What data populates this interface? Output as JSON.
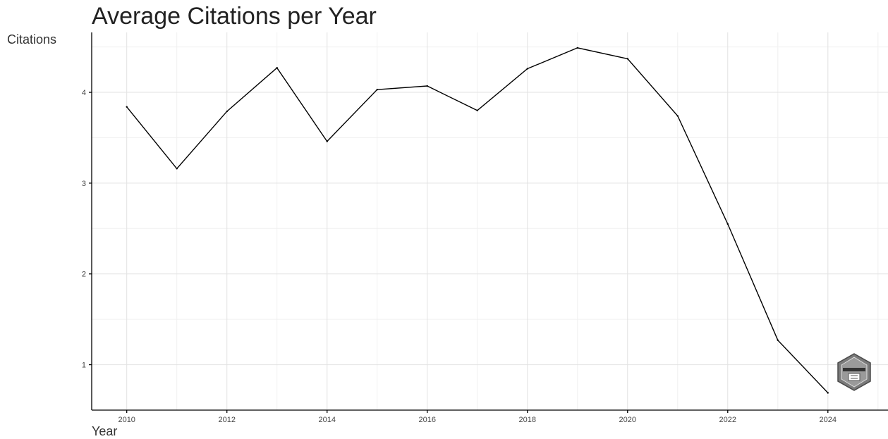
{
  "chart_data": {
    "type": "line",
    "title": "Average Citations per Year",
    "xlabel": "Year",
    "ylabel": "Citations",
    "x": [
      2010,
      2011,
      2012,
      2013,
      2014,
      2015,
      2016,
      2017,
      2018,
      2019,
      2020,
      2021,
      2022,
      2023,
      2024
    ],
    "series": [
      {
        "values": [
          3.84,
          3.16,
          3.79,
          4.27,
          3.46,
          4.03,
          4.07,
          3.8,
          4.26,
          4.49,
          4.37,
          3.74,
          2.55,
          1.27,
          0.69
        ]
      }
    ],
    "xlim": [
      2009.3,
      2025.2
    ],
    "ylim": [
      0.5,
      4.66
    ],
    "x_ticks": [
      2010,
      2012,
      2014,
      2016,
      2018,
      2020,
      2022,
      2024
    ],
    "y_ticks": [
      1,
      2,
      3,
      4
    ],
    "grid": true,
    "line_color": "#000000",
    "grid_color": "#e2e2e2"
  }
}
